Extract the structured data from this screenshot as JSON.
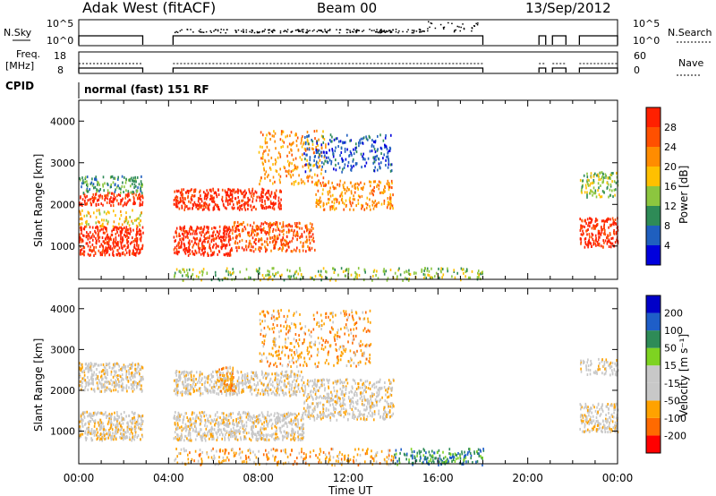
{
  "header": {
    "station": "Adak West (fitACF)",
    "beam": "Beam 00",
    "date": "13/Sep/2012"
  },
  "top_panels": {
    "nsky_label": "N.Sky",
    "nsky_ticks": [
      "10^5",
      "10^0"
    ],
    "nsearch_label": "N.Search",
    "nsearch_ticks": [
      "10^5",
      "10^0"
    ],
    "freq_label_1": "Freq.",
    "freq_label_2": "[MHz]",
    "freq_ticks": [
      "18",
      "8"
    ],
    "nave_label": "Nave",
    "nave_ticks": [
      "60",
      "0"
    ],
    "cpid_label": "CPID",
    "cpid_value": "normal (fast) 151 RF"
  },
  "colors": {
    "power": [
      "#0000dd",
      "#1f5fbf",
      "#2e8b57",
      "#8cc63f",
      "#ffc000",
      "#ff8c00",
      "#ff5000",
      "#ff2000"
    ],
    "velocity": [
      "#ff0000",
      "#ff6a00",
      "#ffa200",
      "#c8c8c8",
      "#c8c8c8",
      "#7ed321",
      "#2e8b57",
      "#1e5ec8",
      "#0000c8"
    ]
  },
  "chart_data": [
    {
      "type": "heatmap",
      "title": "",
      "xlabel": "Time UT",
      "ylabel": "Slant Range [km]",
      "xlim_hours": [
        0,
        24
      ],
      "ylim_km": [
        200,
        4500
      ],
      "x_ticks": [
        "00:00",
        "04:00",
        "08:00",
        "12:00",
        "16:00",
        "20:00",
        "00:00"
      ],
      "y_ticks": [
        "1000",
        "2000",
        "3000",
        "4000"
      ],
      "colorbar_label": "Power [dB]",
      "colorbar_ticks": [
        "28",
        "24",
        "20",
        "16",
        "12",
        "8",
        "4"
      ],
      "scatter_bands": [
        {
          "t0": 0.0,
          "t1": 2.85,
          "r0": 800,
          "r1": 1500,
          "level": 7,
          "density": 0.95
        },
        {
          "t0": 0.0,
          "t1": 2.85,
          "r0": 1500,
          "r1": 1900,
          "level": 4,
          "density": 0.4
        },
        {
          "t0": 0.0,
          "t1": 2.85,
          "r0": 2000,
          "r1": 2300,
          "level": 7,
          "density": 0.9
        },
        {
          "t0": 0.0,
          "t1": 2.85,
          "r0": 2300,
          "r1": 2700,
          "level": 2,
          "density": 0.6
        },
        {
          "t0": 4.2,
          "t1": 6.8,
          "r0": 800,
          "r1": 1500,
          "level": 7,
          "density": 0.9
        },
        {
          "t0": 4.2,
          "t1": 9.0,
          "r0": 1900,
          "r1": 2400,
          "level": 7,
          "density": 0.85
        },
        {
          "t0": 6.8,
          "t1": 10.5,
          "r0": 900,
          "r1": 1600,
          "level": 6,
          "density": 0.7
        },
        {
          "t0": 10.5,
          "t1": 14.0,
          "r0": 1900,
          "r1": 2600,
          "level": 5,
          "density": 0.5
        },
        {
          "t0": 8.0,
          "t1": 11.0,
          "r0": 2500,
          "r1": 3800,
          "level": 5,
          "density": 0.3
        },
        {
          "t0": 10.0,
          "t1": 14.0,
          "r0": 2800,
          "r1": 3700,
          "level": 1,
          "density": 0.35
        },
        {
          "t0": 4.2,
          "t1": 18.0,
          "r0": 200,
          "r1": 500,
          "level": 3,
          "density": 0.35
        },
        {
          "t0": 22.3,
          "t1": 24.0,
          "r0": 1000,
          "r1": 1700,
          "level": 7,
          "density": 0.85
        },
        {
          "t0": 22.3,
          "t1": 24.0,
          "r0": 2200,
          "r1": 2800,
          "level": 3,
          "density": 0.6
        }
      ]
    },
    {
      "type": "heatmap",
      "title": "",
      "xlabel": "Time UT",
      "ylabel": "Slant Range [km]",
      "xlim_hours": [
        0,
        24
      ],
      "ylim_km": [
        200,
        4500
      ],
      "x_ticks": [
        "00:00",
        "04:00",
        "08:00",
        "12:00",
        "16:00",
        "20:00",
        "00:00"
      ],
      "y_ticks": [
        "1000",
        "2000",
        "3000",
        "4000"
      ],
      "colorbar_label": "Velocity [m s⁻¹]",
      "colorbar_ticks": [
        "200",
        "100",
        "50",
        "15",
        "-15",
        "-50",
        "-100",
        "-200"
      ],
      "scatter_bands": [
        {
          "t0": 0.0,
          "t1": 2.85,
          "r0": 800,
          "r1": 1500,
          "level": 3,
          "density": 0.95
        },
        {
          "t0": 0.0,
          "t1": 2.85,
          "r0": 2000,
          "r1": 2700,
          "level": 3,
          "density": 0.9
        },
        {
          "t0": 4.2,
          "t1": 10.0,
          "r0": 800,
          "r1": 1500,
          "level": 3,
          "density": 0.9
        },
        {
          "t0": 4.2,
          "t1": 10.0,
          "r0": 1900,
          "r1": 2500,
          "level": 3,
          "density": 0.85
        },
        {
          "t0": 6.2,
          "t1": 6.9,
          "r0": 2000,
          "r1": 2600,
          "level": 2,
          "density": 0.9
        },
        {
          "t0": 10.0,
          "t1": 14.0,
          "r0": 1300,
          "r1": 2300,
          "level": 3,
          "density": 0.7
        },
        {
          "t0": 8.0,
          "t1": 13.0,
          "r0": 2600,
          "r1": 4000,
          "level": 2,
          "density": 0.3
        },
        {
          "t0": 14.0,
          "t1": 18.0,
          "r0": 200,
          "r1": 600,
          "level": 6,
          "density": 0.6
        },
        {
          "t0": 4.2,
          "t1": 14.0,
          "r0": 200,
          "r1": 600,
          "level": 2,
          "density": 0.35
        },
        {
          "t0": 22.3,
          "t1": 24.0,
          "r0": 1000,
          "r1": 1700,
          "level": 3,
          "density": 0.85
        },
        {
          "t0": 22.3,
          "t1": 24.0,
          "r0": 2400,
          "r1": 2800,
          "level": 3,
          "density": 0.6
        }
      ]
    }
  ]
}
